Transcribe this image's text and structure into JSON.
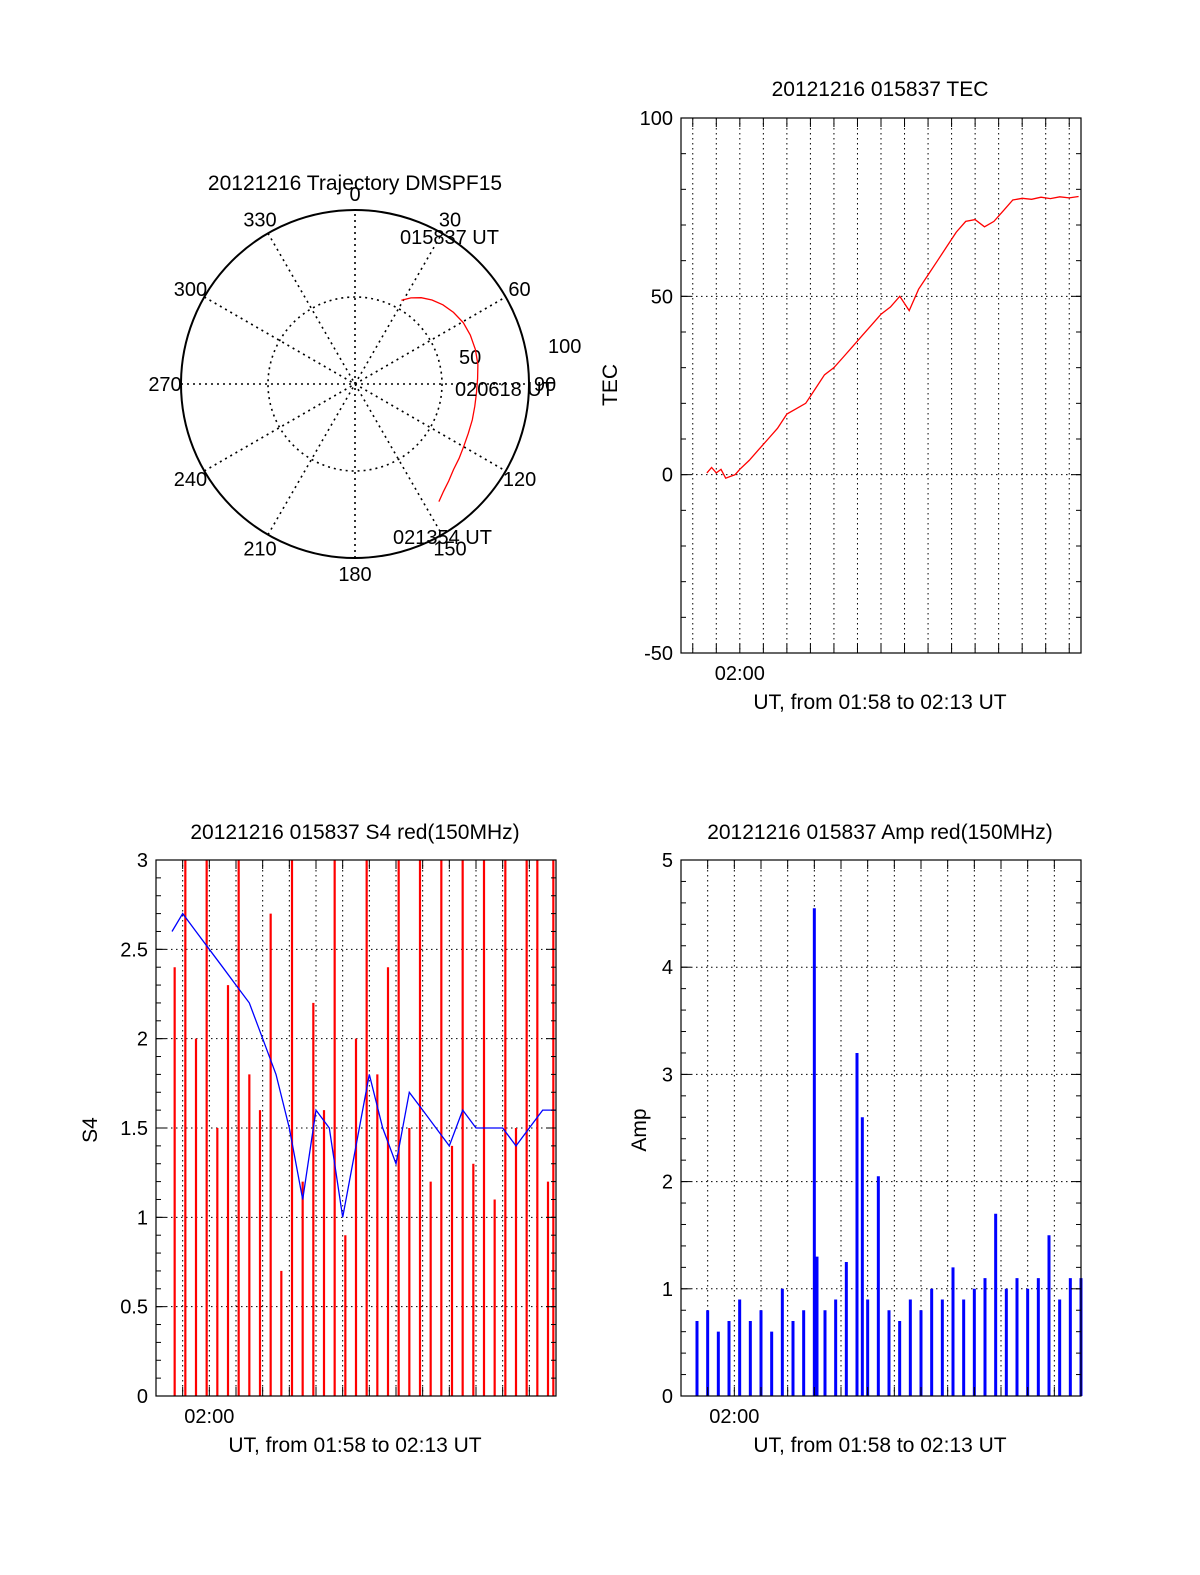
{
  "chart_data": [
    {
      "type": "polar",
      "title": "20121216 Trajectory DMSPF15",
      "angle_labels": [
        "0",
        "30",
        "60",
        "90",
        "120",
        "150",
        "180",
        "210",
        "240",
        "270",
        "300",
        "330"
      ],
      "radius_labels": [
        "50",
        "100"
      ],
      "rmax": 100,
      "grid": "dotted",
      "trajectory": {
        "color": "#ff0000",
        "azimuth_deg": [
          29.0,
          33.0,
          37.5,
          42.5,
          48.0,
          54.0,
          60.5,
          67.0,
          74.0,
          81.0,
          87.5,
          94.0,
          100.5,
          107.0,
          113.5,
          119.5,
          125.5,
          131.0,
          136.0,
          140.5,
          144.5
        ],
        "radius": [
          55.0,
          59.0,
          62.5,
          65.5,
          68.0,
          70.0,
          71.5,
          72.0,
          72.0,
          71.5,
          70.5,
          70.0,
          70.0,
          70.5,
          71.0,
          72.0,
          73.5,
          75.0,
          77.5,
          80.0,
          83.0
        ]
      },
      "annotations": [
        {
          "text": "015837 UT",
          "at": "start"
        },
        {
          "text": "020618 UT",
          "at": "middle"
        },
        {
          "text": "021354 UT",
          "at": "end"
        }
      ]
    },
    {
      "type": "line",
      "title": "20121216 015837 TEC",
      "xlabel": "UT, from 01:58 to 02:13 UT",
      "ylabel": "TEC",
      "xlim": [
        117.5,
        134.5
      ],
      "ylim": [
        -50,
        100
      ],
      "yticks": [
        "-50",
        "0",
        "50",
        "100"
      ],
      "xtick_label": {
        "value": 120,
        "text": "02:00"
      },
      "grid": "dotted",
      "series": [
        {
          "color": "#ff0000",
          "x": [
            118.6,
            118.8,
            119.0,
            119.2,
            119.4,
            119.6,
            119.8,
            120.0,
            120.4,
            120.8,
            121.2,
            121.6,
            122.0,
            122.4,
            122.8,
            123.2,
            123.6,
            124.0,
            124.4,
            124.8,
            125.2,
            125.6,
            126.0,
            126.4,
            126.8,
            127.2,
            127.6,
            128.0,
            128.4,
            128.8,
            129.2,
            129.6,
            130.0,
            130.4,
            130.8,
            131.2,
            131.6,
            132.0,
            132.4,
            132.8,
            133.2,
            133.6,
            134.0,
            134.4
          ],
          "y": [
            0.5,
            2.0,
            0.5,
            1.5,
            -1.0,
            -0.5,
            0.0,
            1.5,
            4.0,
            7.0,
            10.0,
            13.0,
            17.0,
            18.5,
            20.0,
            24.0,
            28.0,
            30.0,
            33.0,
            36.0,
            39.0,
            42.0,
            45.0,
            47.0,
            50.0,
            46.0,
            52.0,
            56.0,
            60.0,
            64.0,
            68.0,
            71.0,
            71.5,
            69.5,
            71.0,
            74.0,
            77.0,
            77.5,
            77.2,
            77.8,
            77.4,
            77.9,
            77.6,
            78.0
          ]
        }
      ]
    },
    {
      "type": "line",
      "title": "20121216 015837 S4 red(150MHz)",
      "xlabel": "UT, from 01:58 to 02:13 UT",
      "ylabel": "S4",
      "xlim": [
        118.0,
        133.0
      ],
      "ylim": [
        0,
        3
      ],
      "yticks": [
        "0",
        "0.5",
        "1",
        "1.5",
        "2",
        "2.5",
        "3"
      ],
      "xtick_label": {
        "value": 120,
        "text": "02:00"
      },
      "grid": "dotted",
      "series": [
        {
          "color": "#0000ff",
          "x": [
            118.6,
            119.0,
            119.5,
            120.0,
            120.5,
            121.0,
            121.5,
            122.0,
            122.5,
            123.0,
            123.5,
            124.0,
            124.5,
            125.0,
            125.5,
            126.0,
            126.5,
            127.0,
            127.5,
            128.0,
            128.5,
            129.0,
            129.5,
            130.0,
            130.5,
            131.0,
            131.5,
            132.0,
            132.5,
            133.0
          ],
          "y": [
            2.6,
            2.7,
            2.6,
            2.5,
            2.4,
            2.3,
            2.2,
            2.0,
            1.8,
            1.5,
            1.1,
            1.6,
            1.5,
            1.0,
            1.4,
            1.8,
            1.5,
            1.3,
            1.7,
            1.6,
            1.5,
            1.4,
            1.6,
            1.5,
            1.5,
            1.5,
            1.4,
            1.5,
            1.6,
            1.6
          ]
        },
        {
          "color": "#ff0000",
          "render": "spikes",
          "x": [
            118.7,
            119.1,
            119.5,
            119.9,
            120.3,
            120.7,
            121.1,
            121.5,
            121.9,
            122.3,
            122.7,
            123.1,
            123.5,
            123.9,
            124.3,
            124.7,
            125.1,
            125.5,
            125.9,
            126.3,
            126.7,
            127.1,
            127.5,
            127.9,
            128.3,
            128.7,
            129.1,
            129.5,
            129.9,
            130.3,
            130.7,
            131.1,
            131.5,
            131.9,
            132.3,
            132.7,
            132.9
          ],
          "y": [
            2.4,
            3.0,
            2.0,
            3.0,
            1.5,
            2.3,
            3.0,
            1.8,
            1.6,
            2.7,
            0.7,
            3.0,
            1.2,
            2.2,
            1.6,
            3.0,
            0.9,
            2.0,
            3.0,
            1.8,
            2.4,
            3.0,
            1.5,
            3.0,
            1.2,
            3.0,
            1.4,
            3.0,
            1.3,
            3.0,
            1.1,
            3.0,
            1.5,
            3.0,
            3.0,
            1.2,
            3.0
          ]
        }
      ]
    },
    {
      "type": "bar",
      "title": "20121216 015837 Amp red(150MHz)",
      "xlabel": "UT, from 01:58 to 02:13 UT",
      "ylabel": "Amp",
      "xlim": [
        118.0,
        133.0
      ],
      "ylim": [
        0,
        5
      ],
      "yticks": [
        "0",
        "1",
        "2",
        "3",
        "4",
        "5"
      ],
      "xtick_label": {
        "value": 120,
        "text": "02:00"
      },
      "grid": "dotted",
      "series": [
        {
          "color": "#0000ff",
          "x": [
            118.6,
            119.0,
            119.4,
            119.8,
            120.2,
            120.6,
            121.0,
            121.4,
            121.8,
            122.2,
            122.6,
            123.0,
            123.1,
            123.4,
            123.8,
            124.2,
            124.6,
            124.8,
            125.0,
            125.4,
            125.8,
            126.2,
            126.6,
            127.0,
            127.4,
            127.8,
            128.2,
            128.6,
            129.0,
            129.4,
            129.8,
            130.2,
            130.6,
            131.0,
            131.4,
            131.8,
            132.2,
            132.6,
            133.0
          ],
          "y": [
            0.7,
            0.8,
            0.6,
            0.7,
            0.9,
            0.7,
            0.8,
            0.6,
            1.0,
            0.7,
            0.8,
            4.55,
            1.3,
            0.8,
            0.9,
            1.25,
            3.2,
            2.6,
            0.9,
            2.05,
            0.8,
            0.7,
            0.9,
            0.8,
            1.0,
            0.9,
            1.2,
            0.9,
            1.0,
            1.1,
            1.7,
            1.0,
            1.1,
            1.0,
            1.1,
            1.5,
            0.9,
            1.1,
            1.1
          ]
        }
      ]
    }
  ]
}
